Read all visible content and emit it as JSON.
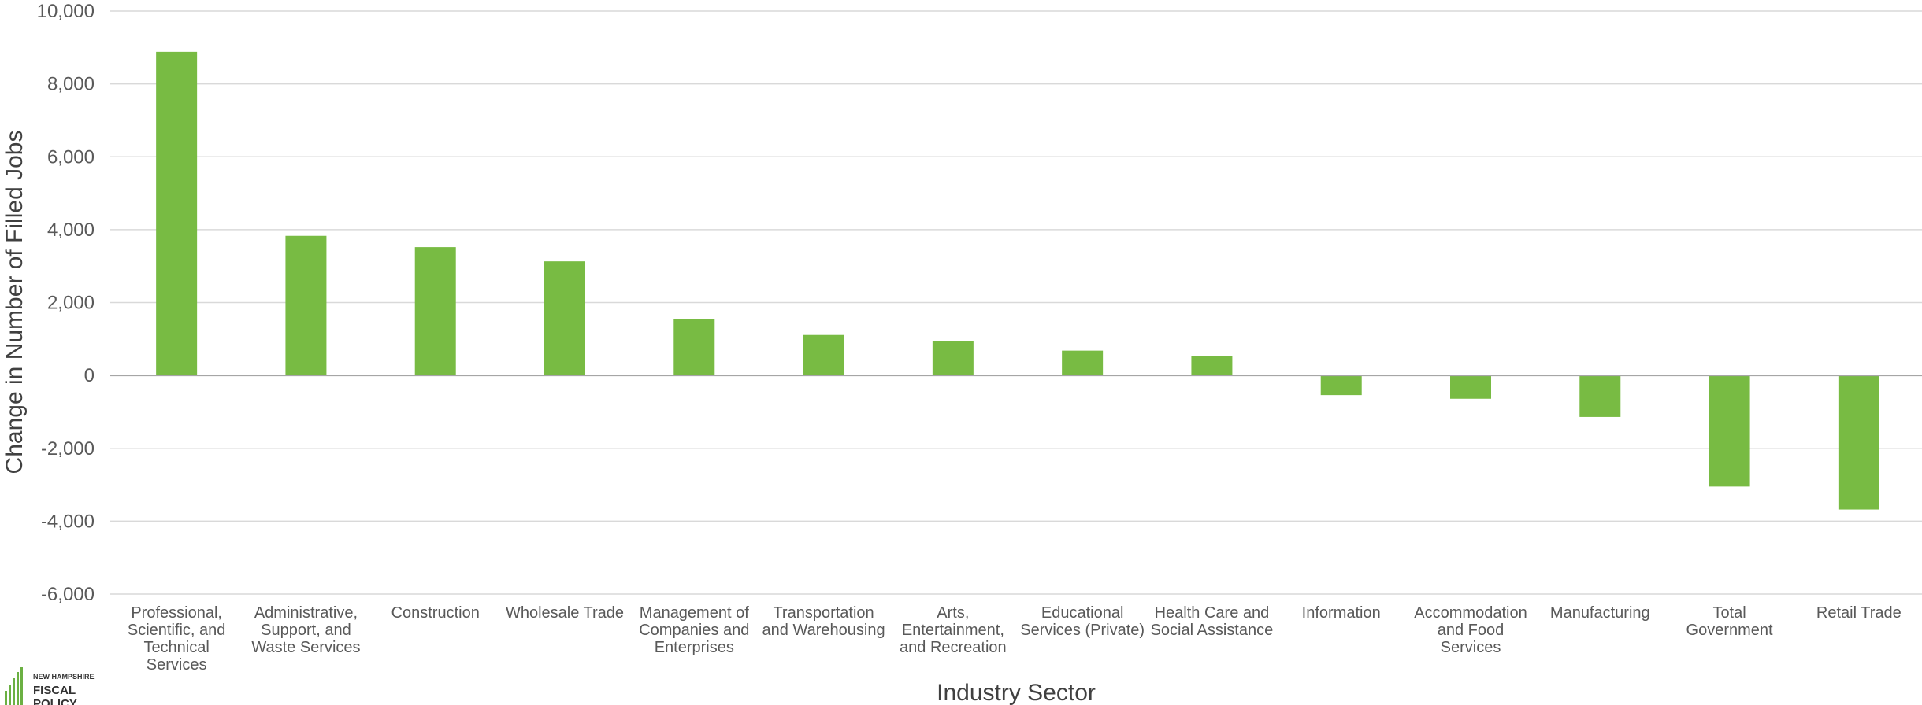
{
  "chart_data": {
    "type": "bar",
    "title": "",
    "xlabel": "Industry Sector",
    "ylabel": "Change in Number of Filled Jobs",
    "ylim": [
      -6000,
      10000
    ],
    "yticks": [
      -6000,
      -4000,
      -2000,
      0,
      2000,
      4000,
      6000,
      8000,
      10000
    ],
    "ytick_labels": [
      "-6,000",
      "-4,000",
      "-2,000",
      "0",
      "2,000",
      "4,000",
      "6,000",
      "8,000",
      "10,000"
    ],
    "grid": true,
    "bar_color": "#78bb43",
    "categories": [
      [
        "Professional,",
        "Scientific, and",
        "Technical",
        "Services"
      ],
      [
        "Administrative,",
        "Support, and",
        "Waste Services"
      ],
      [
        "Construction"
      ],
      [
        "Wholesale Trade"
      ],
      [
        "Management of",
        "Companies and",
        "Enterprises"
      ],
      [
        "Transportation",
        "and Warehousing"
      ],
      [
        "Arts,",
        "Entertainment,",
        "and Recreation"
      ],
      [
        "Educational",
        "Services (Private)"
      ],
      [
        "Health Care and",
        "Social Assistance"
      ],
      [
        "Information"
      ],
      [
        "Accommodation",
        "and Food",
        "Services"
      ],
      [
        "Manufacturing"
      ],
      [
        "Total",
        "Government"
      ],
      [
        "Retail Trade"
      ]
    ],
    "values": [
      8880,
      3830,
      3520,
      3130,
      1540,
      1110,
      940,
      680,
      540,
      -540,
      -640,
      -1140,
      -3050,
      -3680
    ]
  },
  "logo": {
    "line1": "NEW HAMPSHIRE",
    "line2": "FISCAL",
    "line3": "POLICY"
  }
}
